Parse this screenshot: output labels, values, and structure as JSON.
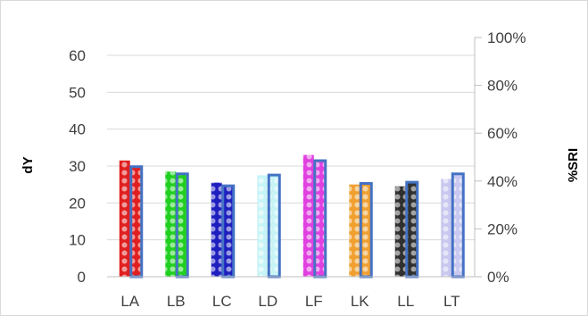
{
  "chart_data": {
    "type": "bar",
    "categories": [
      "LA",
      "LB",
      "LC",
      "LD",
      "LF",
      "LK",
      "LL",
      "LT"
    ],
    "colors": [
      "#e02020",
      "#20d020",
      "#1f1fbf",
      "#c8f4f6",
      "#e040e0",
      "#f0a030",
      "#303030",
      "#c8c8f0"
    ],
    "sri_fill": "#ffffff",
    "sri_stroke": "#4472c4",
    "series": [
      {
        "name": "dY",
        "axis": "left",
        "values": [
          31.5,
          28.5,
          25.5,
          27.5,
          33,
          25,
          24.5,
          26.5
        ]
      },
      {
        "name": "%SRI",
        "axis": "right",
        "values": [
          46,
          43,
          38,
          42.5,
          48.5,
          39,
          39.5,
          43
        ]
      }
    ],
    "left_axis": {
      "label": "dY",
      "ylim": [
        0,
        70
      ],
      "ticks": [
        "0",
        "10",
        "20",
        "30",
        "40",
        "50",
        "60"
      ],
      "tick_values": [
        0,
        10,
        20,
        30,
        40,
        50,
        60
      ]
    },
    "right_axis": {
      "label": "%SRI",
      "ylim": [
        0,
        100
      ],
      "ticks": [
        "0%",
        "20%",
        "40%",
        "60%",
        "80%",
        "100%"
      ],
      "tick_values": [
        0,
        20,
        40,
        60,
        80,
        100
      ]
    },
    "grid": true,
    "legend": "none"
  }
}
